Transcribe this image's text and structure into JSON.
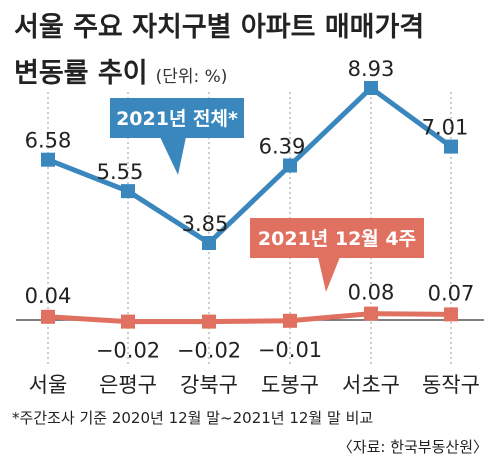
{
  "chart_data": {
    "type": "line",
    "title_line1": "서울 주요 자치구별 아파트 매매가격",
    "title_line2": "변동률 추이",
    "unit": "(단위: %)",
    "categories": [
      "서울",
      "은평구",
      "강북구",
      "도봉구",
      "서초구",
      "동작구"
    ],
    "series": [
      {
        "name": "2021년 전체*",
        "color": "#3a87bd",
        "values": [
          6.58,
          5.55,
          3.85,
          6.39,
          8.93,
          7.01
        ],
        "labels": [
          "6.58",
          "5.55",
          "3.85",
          "6.39",
          "8.93",
          "7.01"
        ]
      },
      {
        "name": "2021년 12월 4주",
        "color": "#e07060",
        "values": [
          0.04,
          -0.02,
          -0.02,
          -0.01,
          0.08,
          0.07
        ],
        "labels": [
          "0.04",
          "−0.02",
          "−0.02",
          "−0.01",
          "0.08",
          "0.07"
        ]
      }
    ],
    "footnote": "*주간조사 기준 2020년 12월 말~2021년 12월 말 비교",
    "source": "〈자료: 한국부동산원〉",
    "grid": "vertical dotted"
  }
}
